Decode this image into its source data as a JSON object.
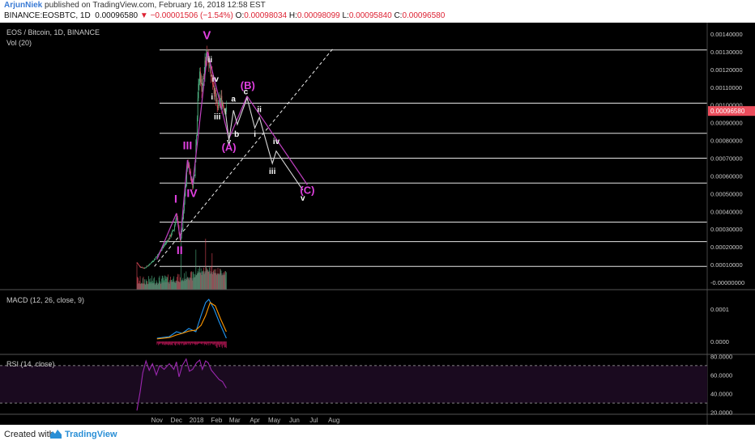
{
  "header": {
    "author": "ArjunNiek",
    "published_text": "published on TradingView.com, February 16, 2018 12:58 EST",
    "ticker": "BINANCE:EOSBTC, 1D",
    "last": "0.00096580",
    "arrow": "▼",
    "change": "−0.00001506 (−1.54%)",
    "o_label": "O:",
    "o_value": "0.00098034",
    "h_label": "H:",
    "h_value": "0.00098099",
    "l_label": "L:",
    "l_value": "0.00095840",
    "c_label": "C:",
    "c_value": "0.00096580"
  },
  "footer": {
    "created_with": "Created with",
    "brand": "TradingView"
  },
  "colors": {
    "background": "#000000",
    "up": "#53b987",
    "down": "#eb4d5c",
    "wave": "#c040c0",
    "projection": "#d8d8d8",
    "macd": "#2196f3",
    "signal": "#ff9800",
    "rsi": "#9c27b0",
    "price_badge": "#eb4d5c"
  },
  "chart_data": [
    {
      "type": "candlestick",
      "title": "EOS / Bitcoin, 1D, BINANCE",
      "volume_label": "Vol (20)",
      "current_price_label": "0.00096580",
      "ylim": [
        -2e-05,
        0.00148
      ],
      "y_ticks": [
        "0.00140000",
        "0.00130000",
        "0.00120000",
        "0.00110000",
        "0.00100000",
        "0.00090000",
        "0.00080000",
        "0.00070000",
        "0.00060000",
        "0.00050000",
        "0.00040000",
        "0.00030000",
        "0.00020000",
        "0.00010000",
        "-0.00000000"
      ],
      "x_ticks": [
        "Nov",
        "Dec",
        "2018",
        "Feb",
        "Mar",
        "Apr",
        "May",
        "Jun",
        "Jul",
        "Aug"
      ],
      "price_path": [
        [
          "2017-10-01",
          0.00011
        ],
        [
          "2017-10-05",
          9e-05
        ],
        [
          "2017-10-12",
          8e-05
        ],
        [
          "2017-10-20",
          0.0001
        ],
        [
          "2017-10-28",
          0.00013
        ],
        [
          "2017-11-05",
          0.00017
        ],
        [
          "2017-11-12",
          0.00021
        ],
        [
          "2017-11-20",
          0.00025
        ],
        [
          "2017-11-27",
          0.0003
        ],
        [
          "2017-12-01",
          0.00038
        ],
        [
          "2017-12-04",
          0.00031
        ],
        [
          "2017-12-07",
          0.00023
        ],
        [
          "2017-12-10",
          0.0003
        ],
        [
          "2017-12-13",
          0.00045
        ],
        [
          "2017-12-16",
          0.00057
        ],
        [
          "2017-12-18",
          0.00068
        ],
        [
          "2017-12-20",
          0.00066
        ],
        [
          "2017-12-23",
          0.0006
        ],
        [
          "2017-12-26",
          0.00055
        ],
        [
          "2017-12-29",
          0.00062
        ],
        [
          "2018-01-01",
          0.00085
        ],
        [
          "2018-01-03",
          0.00105
        ],
        [
          "2018-01-06",
          0.00118
        ],
        [
          "2018-01-09",
          0.0011
        ],
        [
          "2018-01-12",
          0.00115
        ],
        [
          "2018-01-15",
          0.00125
        ],
        [
          "2018-01-18",
          0.00129
        ],
        [
          "2018-01-21",
          0.00124
        ],
        [
          "2018-01-24",
          0.00116
        ],
        [
          "2018-01-27",
          0.00112
        ],
        [
          "2018-01-30",
          0.00104
        ],
        [
          "2018-02-02",
          0.00098
        ],
        [
          "2018-02-05",
          0.00101
        ],
        [
          "2018-02-08",
          0.00103
        ],
        [
          "2018-02-11",
          0.001
        ],
        [
          "2018-02-14",
          0.00098
        ],
        [
          "2018-02-16",
          0.000966
        ]
      ],
      "volume_spikes": [
        [
          "2017-10-01",
          0.35
        ],
        [
          "2017-12-08",
          0.65
        ],
        [
          "2017-12-31",
          0.55
        ],
        [
          "2018-01-15",
          0.7
        ],
        [
          "2018-01-25",
          0.5
        ]
      ],
      "horizontal_levels": [
        0.00131,
        0.00101,
        0.00084,
        0.0007,
        0.00056,
        0.00034,
        0.00023,
        9e-05
      ],
      "trendline": {
        "from": [
          "2017-10-28",
          9e-05
        ],
        "to": [
          "2018-07-31",
          0.00132
        ],
        "style": "dashed"
      },
      "wave_lines": [
        {
          "from": [
            "2017-11-01",
            0.00013
          ],
          "to": [
            "2017-12-01",
            0.00039
          ]
        },
        {
          "from": [
            "2017-12-01",
            0.00039
          ],
          "to": [
            "2017-12-07",
            0.00024
          ]
        },
        {
          "from": [
            "2017-12-07",
            0.00024
          ],
          "to": [
            "2017-12-18",
            0.00069
          ]
        },
        {
          "from": [
            "2017-12-18",
            0.00069
          ],
          "to": [
            "2017-12-26",
            0.00055
          ]
        },
        {
          "from": [
            "2017-12-26",
            0.00055
          ],
          "to": [
            "2018-01-18",
            0.0013
          ]
        },
        {
          "from": [
            "2018-01-18",
            0.0013
          ],
          "to": [
            "2018-02-20",
            0.00081
          ]
        },
        {
          "from": [
            "2018-02-20",
            0.00081
          ],
          "to": [
            "2018-03-20",
            0.00105
          ]
        },
        {
          "from": [
            "2018-03-20",
            0.00105
          ],
          "to": [
            "2018-06-21",
            0.00055
          ]
        }
      ],
      "projection_path": [
        [
          "2018-02-14",
          0.00098
        ],
        [
          "2018-02-20",
          0.0008
        ],
        [
          "2018-02-27",
          0.00097
        ],
        [
          "2018-03-05",
          0.00089
        ],
        [
          "2018-03-20",
          0.00104
        ],
        [
          "2018-04-01",
          0.00087
        ],
        [
          "2018-04-08",
          0.00093
        ],
        [
          "2018-04-28",
          0.00067
        ],
        [
          "2018-05-04",
          0.00074
        ],
        [
          "2018-06-14",
          0.00052
        ]
      ],
      "wave_labels": [
        {
          "text": "I",
          "at": [
            "2017-11-30",
            0.00045
          ],
          "color": "#e040e0",
          "size": 14
        },
        {
          "text": "II",
          "at": [
            "2017-12-06",
            0.00016
          ],
          "color": "#e040e0",
          "size": 14
        },
        {
          "text": "III",
          "at": [
            "2017-12-18",
            0.00075
          ],
          "color": "#e040e0",
          "size": 14
        },
        {
          "text": "IV",
          "at": [
            "2017-12-25",
            0.00048
          ],
          "color": "#e040e0",
          "size": 14
        },
        {
          "text": "V",
          "at": [
            "2018-01-17",
            0.00137
          ],
          "color": "#e040e0",
          "size": 15
        },
        {
          "text": "ii",
          "at": [
            "2018-01-22",
            0.00124
          ],
          "color": "#ffffff",
          "size": 10
        },
        {
          "text": "i",
          "at": [
            "2018-01-25",
            0.00103
          ],
          "color": "#ffffff",
          "size": 10
        },
        {
          "text": "iv",
          "at": [
            "2018-01-30",
            0.00113
          ],
          "color": "#ffffff",
          "size": 10
        },
        {
          "text": "iii",
          "at": [
            "2018-02-02",
            0.00092
          ],
          "color": "#ffffff",
          "size": 10
        },
        {
          "text": "a",
          "at": [
            "2018-02-27",
            0.00102
          ],
          "color": "#ffffff",
          "size": 10
        },
        {
          "text": "b",
          "at": [
            "2018-03-04",
            0.00082
          ],
          "color": "#ffffff",
          "size": 10
        },
        {
          "text": "c",
          "at": [
            "2018-03-18",
            0.00106
          ],
          "color": "#ffffff",
          "size": 10
        },
        {
          "text": "(B)",
          "at": [
            "2018-03-21",
            0.00109
          ],
          "color": "#e040e0",
          "size": 13
        },
        {
          "text": "v",
          "at": [
            "2018-02-20",
            0.00078
          ],
          "color": "#ffffff",
          "size": 9
        },
        {
          "text": "(A)",
          "at": [
            "2018-02-20",
            0.00074
          ],
          "color": "#e040e0",
          "size": 13
        },
        {
          "text": "ii",
          "at": [
            "2018-04-08",
            0.00096
          ],
          "color": "#ffffff",
          "size": 10
        },
        {
          "text": "i",
          "at": [
            "2018-04-01",
            0.00082
          ],
          "color": "#ffffff",
          "size": 10
        },
        {
          "text": "iv",
          "at": [
            "2018-05-04",
            0.00078
          ],
          "color": "#ffffff",
          "size": 10
        },
        {
          "text": "iii",
          "at": [
            "2018-04-28",
            0.00061
          ],
          "color": "#ffffff",
          "size": 10
        },
        {
          "text": "v",
          "at": [
            "2018-06-14",
            0.00046
          ],
          "color": "#ffffff",
          "size": 10
        },
        {
          "text": "(C)",
          "at": [
            "2018-06-21",
            0.0005
          ],
          "color": "#e040e0",
          "size": 13
        }
      ]
    },
    {
      "type": "line",
      "title": "MACD (12, 26, close, 9)",
      "ylim": [
        -4e-05,
        0.00016
      ],
      "y_ticks": [
        "0.0001",
        "0.0000"
      ],
      "series": [
        {
          "name": "MACD",
          "color": "#2196f3",
          "points": [
            [
              "2017-11-01",
              1e-05
            ],
            [
              "2017-11-20",
              1.5e-05
            ],
            [
              "2017-12-01",
              3e-05
            ],
            [
              "2017-12-10",
              2.5e-05
            ],
            [
              "2017-12-20",
              4e-05
            ],
            [
              "2017-12-31",
              3e-05
            ],
            [
              "2018-01-08",
              8e-05
            ],
            [
              "2018-01-15",
              0.00012
            ],
            [
              "2018-01-20",
              0.00013
            ],
            [
              "2018-01-28",
              0.0001
            ],
            [
              "2018-02-05",
              6e-05
            ],
            [
              "2018-02-16",
              1e-05
            ]
          ]
        },
        {
          "name": "Signal",
          "color": "#ff9800",
          "points": [
            [
              "2017-11-01",
              8e-06
            ],
            [
              "2017-11-20",
              1.2e-05
            ],
            [
              "2017-12-01",
              2e-05
            ],
            [
              "2017-12-10",
              2.5e-05
            ],
            [
              "2017-12-20",
              3.2e-05
            ],
            [
              "2017-12-31",
              3.5e-05
            ],
            [
              "2018-01-08",
              5e-05
            ],
            [
              "2018-01-15",
              8e-05
            ],
            [
              "2018-01-22",
              0.00012
            ],
            [
              "2018-01-30",
              0.00011
            ],
            [
              "2018-02-07",
              7e-05
            ],
            [
              "2018-02-16",
              3e-05
            ]
          ]
        }
      ]
    },
    {
      "type": "line",
      "title": "RSI (14, close)",
      "ylim": [
        18,
        82
      ],
      "y_ticks": [
        "80.0000",
        "60.0000",
        "40.0000",
        "20.0000"
      ],
      "bands": [
        70,
        30
      ],
      "series": [
        {
          "name": "RSI",
          "color": "#9c27b0",
          "points": [
            [
              "2017-10-01",
              22
            ],
            [
              "2017-10-06",
              42
            ],
            [
              "2017-10-10",
              62
            ],
            [
              "2017-10-15",
              75
            ],
            [
              "2017-10-20",
              65
            ],
            [
              "2017-10-25",
              72
            ],
            [
              "2017-10-31",
              60
            ],
            [
              "2017-11-05",
              70
            ],
            [
              "2017-11-12",
              66
            ],
            [
              "2017-11-20",
              72
            ],
            [
              "2017-11-27",
              66
            ],
            [
              "2017-12-01",
              74
            ],
            [
              "2017-12-05",
              58
            ],
            [
              "2017-12-10",
              70
            ],
            [
              "2017-12-16",
              77
            ],
            [
              "2017-12-21",
              64
            ],
            [
              "2017-12-26",
              66
            ],
            [
              "2018-01-01",
              73
            ],
            [
              "2018-01-06",
              76
            ],
            [
              "2018-01-10",
              66
            ],
            [
              "2018-01-15",
              75
            ],
            [
              "2018-01-19",
              73
            ],
            [
              "2018-01-24",
              65
            ],
            [
              "2018-01-30",
              60
            ],
            [
              "2018-02-05",
              55
            ],
            [
              "2018-02-10",
              53
            ],
            [
              "2018-02-16",
              46
            ]
          ]
        }
      ]
    }
  ]
}
